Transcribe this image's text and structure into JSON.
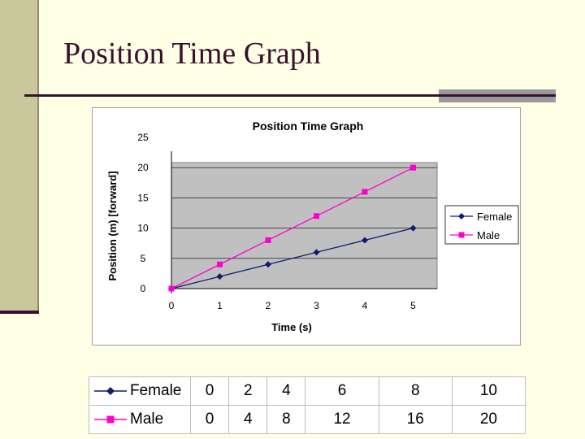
{
  "slide": {
    "title": "Position Time Graph"
  },
  "chart_data": {
    "type": "line",
    "title": "Position Time Graph",
    "xlabel": "Time (s)",
    "ylabel": "Position (m) [forward]",
    "x": [
      0,
      1,
      2,
      3,
      4,
      5
    ],
    "xticks": [
      "0",
      "1",
      "2",
      "3",
      "4",
      "5"
    ],
    "yticks": [
      "0",
      "5",
      "10",
      "15",
      "20",
      "25"
    ],
    "ylim": [
      0,
      25
    ],
    "grid": true,
    "legend_position": "right",
    "series": [
      {
        "name": "Female",
        "values": [
          0,
          2,
          4,
          6,
          8,
          10
        ],
        "color": "#0d1b6e",
        "marker": "diamond"
      },
      {
        "name": "Male",
        "values": [
          0,
          4,
          8,
          12,
          16,
          20
        ],
        "color": "#ff00cc",
        "marker": "square"
      }
    ]
  },
  "table": {
    "rows": [
      {
        "label": "Female",
        "values": [
          "0",
          "2",
          "4",
          "6",
          "8",
          "10"
        ],
        "color": "#0d1b6e",
        "marker": "diamond"
      },
      {
        "label": "Male",
        "values": [
          "0",
          "4",
          "8",
          "12",
          "16",
          "20"
        ],
        "color": "#ff00cc",
        "marker": "square"
      }
    ]
  }
}
